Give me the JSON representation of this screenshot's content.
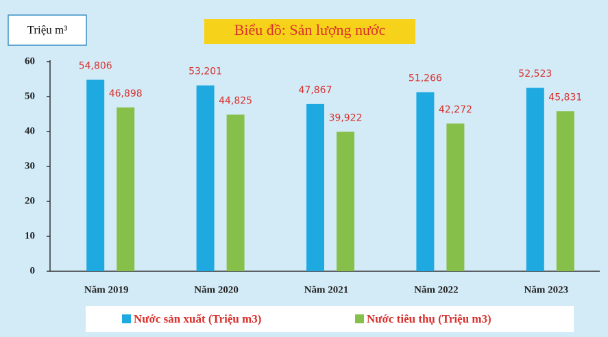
{
  "chart_data": {
    "type": "bar",
    "title": "Biểu đồ: Sản lượng nước",
    "y_label": "Triệu m³",
    "categories": [
      "Năm 2019",
      "Năm 2020",
      "Năm 2021",
      "Năm 2022",
      "Năm 2023"
    ],
    "series": [
      {
        "name": "Nước sản xuất (Triệu  m3)",
        "color": "#1fa9e1",
        "values": [
          54.806,
          53.201,
          47.867,
          51.266,
          52.523
        ],
        "value_labels": [
          "54,806",
          "53,201",
          "47,867",
          "51,266",
          "52,523"
        ]
      },
      {
        "name": "Nước tiêu thụ (Triệu  m3)",
        "color": "#86c04a",
        "values": [
          46.898,
          44.825,
          39.922,
          42.272,
          45.831
        ],
        "value_labels": [
          "46,898",
          "44,825",
          "39,922",
          "42,272",
          "45,831"
        ]
      }
    ],
    "ylim": [
      0,
      60
    ],
    "yticks": [
      0,
      10,
      20,
      30,
      40,
      50,
      60
    ]
  }
}
